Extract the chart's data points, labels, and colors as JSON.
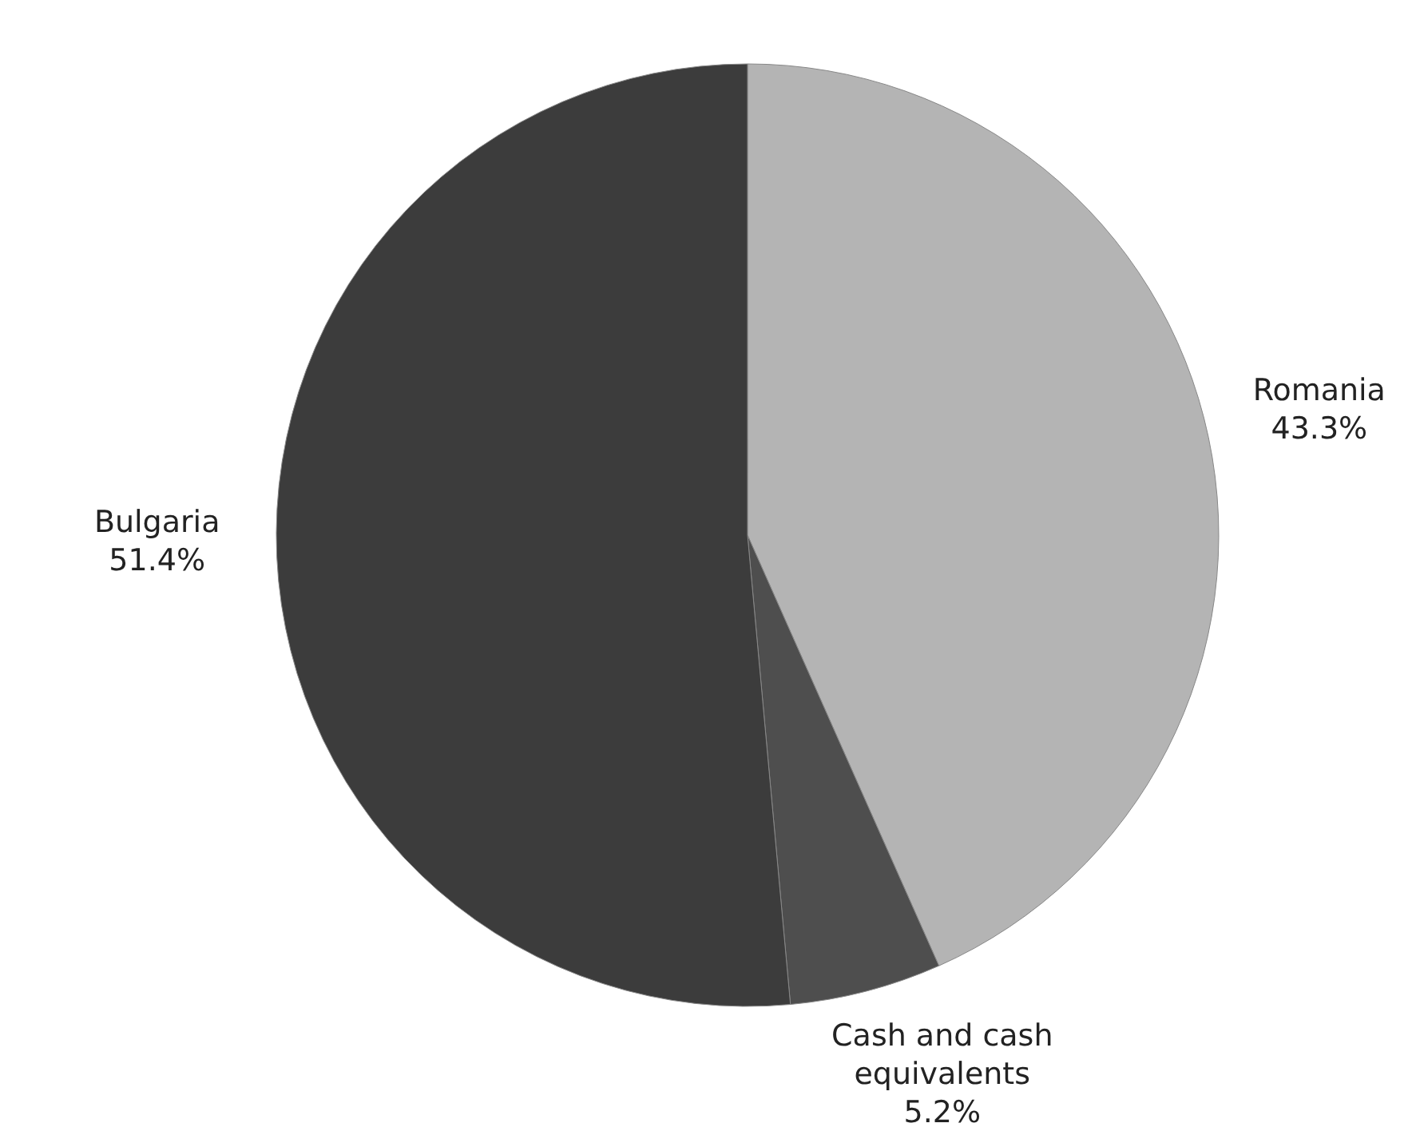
{
  "chart_data": {
    "type": "pie",
    "categories": [
      "Romania",
      "Cash and cash equivalents",
      "Bulgaria"
    ],
    "values": [
      43.3,
      5.2,
      51.4
    ],
    "value_labels": [
      "43.3%",
      "5.2%",
      "51.4%"
    ],
    "colors": [
      "#b4b4b4",
      "#4e4e4e",
      "#3c3c3c"
    ]
  }
}
